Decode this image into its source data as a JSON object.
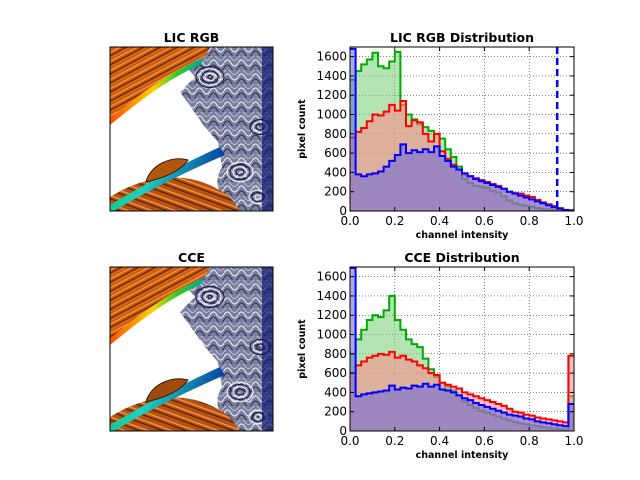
{
  "chart_data": [
    {
      "type": "image",
      "title": "LIC RGB"
    },
    {
      "type": "histogram",
      "title": "LIC RGB Distribution",
      "xlabel": "channel intensity",
      "ylabel": "pixel count",
      "xlim": [
        0.0,
        1.0
      ],
      "ylim": [
        0,
        1700
      ],
      "xticks": [
        "0.0",
        "0.2",
        "0.4",
        "0.6",
        "0.8",
        "1.0"
      ],
      "yticks": [
        "0",
        "200",
        "400",
        "600",
        "800",
        "1000",
        "1200",
        "1400",
        "1600"
      ],
      "grid": true,
      "bin_width": 0.025,
      "series": [
        {
          "color": "#00aa00",
          "fill": "#77cc77",
          "values": [
            1360,
            1450,
            1520,
            1570,
            1640,
            1500,
            1480,
            1550,
            1650,
            1100,
            1000,
            950,
            900,
            870,
            830,
            800,
            750,
            640,
            560,
            460,
            330,
            290,
            260,
            250,
            240,
            210,
            190,
            150,
            110,
            80,
            65,
            55,
            45,
            30,
            20,
            15,
            10,
            5,
            3,
            2
          ]
        },
        {
          "color": "#ff0000",
          "fill": "#ff8888",
          "values": [
            760,
            820,
            860,
            930,
            1000,
            990,
            1030,
            1100,
            1040,
            1140,
            880,
            940,
            920,
            800,
            720,
            800,
            620,
            540,
            480,
            430,
            380,
            360,
            340,
            320,
            300,
            280,
            260,
            230,
            200,
            185,
            180,
            160,
            145,
            115,
            90,
            70,
            50,
            30,
            12,
            8
          ]
        },
        {
          "color": "#0000ff",
          "fill": "#6666dd",
          "values": [
            1680,
            380,
            360,
            380,
            390,
            410,
            460,
            520,
            580,
            690,
            600,
            630,
            610,
            640,
            610,
            670,
            570,
            520,
            460,
            430,
            390,
            360,
            330,
            310,
            290,
            270,
            250,
            230,
            200,
            180,
            160,
            140,
            120,
            100,
            80,
            60,
            40,
            25,
            10,
            5
          ]
        }
      ],
      "vlines": [
        {
          "x": 0.925,
          "color": "#0000ff",
          "style": "dashed"
        }
      ]
    },
    {
      "type": "image",
      "title": "CCE"
    },
    {
      "type": "histogram",
      "title": "CCE Distribution",
      "xlabel": "channel intensity",
      "ylabel": "pixel count",
      "xlim": [
        0.0,
        1.0
      ],
      "ylim": [
        0,
        1700
      ],
      "xticks": [
        "0.0",
        "0.2",
        "0.4",
        "0.6",
        "0.8",
        "1.0"
      ],
      "yticks": [
        "0",
        "200",
        "400",
        "600",
        "800",
        "1000",
        "1200",
        "1400",
        "1600"
      ],
      "grid": true,
      "bin_width": 0.025,
      "series": [
        {
          "color": "#00aa00",
          "fill": "#77cc77",
          "values": [
            800,
            950,
            1050,
            1150,
            1200,
            1180,
            1250,
            1400,
            1150,
            1050,
            950,
            900,
            870,
            750,
            640,
            560,
            500,
            460,
            420,
            360,
            310,
            270,
            240,
            210,
            190,
            170,
            150,
            130,
            110,
            95,
            80,
            70,
            60,
            50,
            40,
            30,
            25,
            20,
            15,
            360
          ]
        },
        {
          "color": "#ff0000",
          "fill": "#ff8888",
          "values": [
            600,
            680,
            720,
            760,
            780,
            800,
            790,
            820,
            760,
            780,
            740,
            720,
            680,
            650,
            600,
            580,
            500,
            480,
            460,
            440,
            400,
            380,
            360,
            340,
            320,
            300,
            280,
            260,
            230,
            200,
            190,
            170,
            160,
            140,
            130,
            120,
            110,
            100,
            90,
            780
          ]
        },
        {
          "color": "#0000ff",
          "fill": "#6666dd",
          "values": [
            1690,
            360,
            380,
            390,
            400,
            410,
            420,
            470,
            430,
            450,
            440,
            470,
            460,
            490,
            460,
            480,
            430,
            420,
            400,
            370,
            340,
            320,
            290,
            270,
            250,
            230,
            210,
            190,
            170,
            160,
            150,
            130,
            120,
            100,
            90,
            80,
            70,
            60,
            50,
            280
          ]
        }
      ]
    }
  ]
}
